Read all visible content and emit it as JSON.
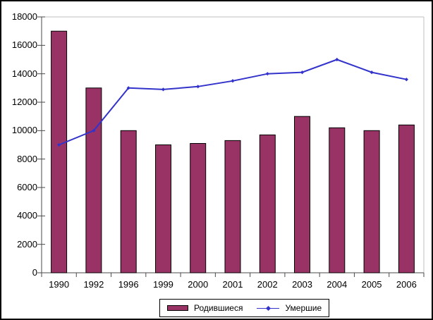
{
  "chart_data": {
    "type": "bar",
    "combo": "bar+line",
    "title": "",
    "xlabel": "",
    "ylabel": "",
    "categories": [
      "1990",
      "1992",
      "1996",
      "1999",
      "2000",
      "2001",
      "2002",
      "2003",
      "2004",
      "2005",
      "2006"
    ],
    "series": [
      {
        "name": "Родившиеся",
        "type": "bar",
        "color": "#993366",
        "border_color": "#000000",
        "values": [
          17000,
          13000,
          10000,
          9000,
          9100,
          9300,
          9700,
          11000,
          10200,
          10000,
          10400
        ]
      },
      {
        "name": "Умершие",
        "type": "line",
        "color": "#3333CC",
        "marker": "diamond",
        "values": [
          9000,
          10000,
          13000,
          12900,
          13100,
          13500,
          14000,
          14100,
          15000,
          14100,
          13600
        ]
      }
    ],
    "ylim": [
      0,
      18000
    ],
    "ytick_step": 2000,
    "ytick_labels": [
      "0",
      "2000",
      "4000",
      "6000",
      "8000",
      "10000",
      "12000",
      "14000",
      "16000",
      "18000"
    ],
    "grid": "none",
    "legend_position": "bottom",
    "plot_border_color": "#c0c0c0",
    "axis_color": "#4a4a4a",
    "background": "#ffffff"
  },
  "legend": {
    "items": [
      {
        "label": "Родившиеся",
        "swatch": "bar",
        "color": "#993366"
      },
      {
        "label": "Умершие",
        "swatch": "line",
        "color": "#3333CC"
      }
    ]
  }
}
